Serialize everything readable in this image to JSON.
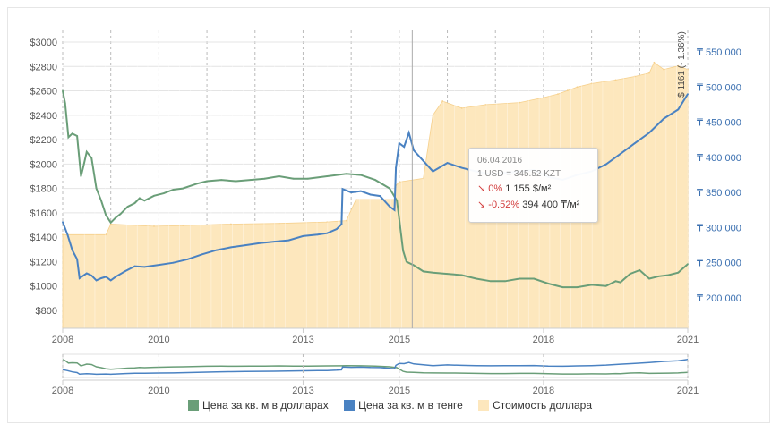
{
  "chart_data": {
    "type": "line",
    "x_ticks": [
      "2008",
      "2010",
      "2013",
      "2015",
      "2018",
      "2021"
    ],
    "xlim": [
      2008.0,
      2021.0
    ],
    "y_left_ticks": [
      "$800",
      "$1000",
      "$1200",
      "$1400",
      "$1600",
      "$1800",
      "$2000",
      "$2200",
      "$2400",
      "$2600",
      "$2800",
      "$3000"
    ],
    "y_left_range": [
      800,
      3000
    ],
    "y_right_ticks": [
      "₸ 200 000",
      "₸ 250 000",
      "₸ 300 000",
      "₸ 350 000",
      "₸ 400 000",
      "₸ 450 000",
      "₸ 500 000",
      "₸ 550 000"
    ],
    "y_right_range": [
      200000,
      550000
    ],
    "current_label": "$ 1161 (- 1.36%)",
    "colors": {
      "usd": "#6a9e78",
      "kzt": "#4a82c2",
      "rate": "#fde7bd",
      "rate_stroke": "#f6d08c"
    },
    "series": [
      {
        "name": "Цена за кв. м в долларах",
        "axis": "left",
        "x": [
          2008.0,
          2008.05,
          2008.12,
          2008.2,
          2008.3,
          2008.38,
          2008.43,
          2008.5,
          2008.6,
          2008.7,
          2008.8,
          2008.9,
          2009.0,
          2009.1,
          2009.2,
          2009.35,
          2009.5,
          2009.6,
          2009.7,
          2009.9,
          2010.1,
          2010.3,
          2010.5,
          2010.8,
          2011.0,
          2011.3,
          2011.6,
          2011.9,
          2012.2,
          2012.5,
          2012.8,
          2013.1,
          2013.5,
          2013.9,
          2014.2,
          2014.5,
          2014.8,
          2014.95,
          2015.0,
          2015.08,
          2015.15,
          2015.3,
          2015.5,
          2015.7,
          2016.0,
          2016.3,
          2016.6,
          2016.9,
          2017.2,
          2017.5,
          2017.8,
          2018.1,
          2018.4,
          2018.7,
          2019.0,
          2019.3,
          2019.5,
          2019.6,
          2019.8,
          2020.0,
          2020.2,
          2020.4,
          2020.6,
          2020.8,
          2021.0
        ],
        "y": [
          2600,
          2500,
          2220,
          2250,
          2230,
          1900,
          1980,
          2100,
          2050,
          1800,
          1700,
          1580,
          1520,
          1560,
          1590,
          1650,
          1680,
          1720,
          1700,
          1740,
          1760,
          1790,
          1800,
          1840,
          1860,
          1870,
          1860,
          1870,
          1880,
          1900,
          1880,
          1880,
          1900,
          1920,
          1910,
          1870,
          1800,
          1700,
          1550,
          1290,
          1200,
          1170,
          1120,
          1110,
          1100,
          1090,
          1060,
          1040,
          1040,
          1060,
          1060,
          1020,
          990,
          990,
          1010,
          1000,
          1040,
          1030,
          1100,
          1130,
          1060,
          1080,
          1090,
          1110,
          1180
        ]
      },
      {
        "name": "Цена за кв. м в тенге",
        "axis": "right",
        "x": [
          2008.0,
          2008.1,
          2008.2,
          2008.3,
          2008.35,
          2008.5,
          2008.6,
          2008.7,
          2008.8,
          2008.9,
          2009.0,
          2009.1,
          2009.3,
          2009.5,
          2009.7,
          2010.0,
          2010.3,
          2010.6,
          2010.9,
          2011.2,
          2011.5,
          2011.8,
          2012.1,
          2012.4,
          2012.7,
          2013.0,
          2013.3,
          2013.5,
          2013.7,
          2013.8,
          2013.82,
          2014.0,
          2014.2,
          2014.4,
          2014.6,
          2014.8,
          2014.9,
          2014.93,
          2015.0,
          2015.1,
          2015.2,
          2015.3,
          2015.5,
          2015.7,
          2016.0,
          2016.3,
          2016.6,
          2016.9,
          2017.2,
          2017.5,
          2017.8,
          2018.1,
          2018.4,
          2018.7,
          2019.0,
          2019.3,
          2019.6,
          2019.9,
          2020.2,
          2020.5,
          2020.8,
          2021.0
        ],
        "y": [
          308000,
          290000,
          268000,
          255000,
          228000,
          235000,
          232000,
          225000,
          228000,
          230000,
          225000,
          230000,
          238000,
          245000,
          244000,
          247000,
          250000,
          255000,
          262000,
          268000,
          272000,
          275000,
          278000,
          280000,
          282000,
          288000,
          290000,
          292000,
          298000,
          305000,
          355000,
          350000,
          352000,
          347000,
          345000,
          330000,
          325000,
          385000,
          420000,
          415000,
          435000,
          410000,
          395000,
          380000,
          392000,
          385000,
          380000,
          376000,
          378000,
          380000,
          382000,
          372000,
          368000,
          375000,
          380000,
          390000,
          405000,
          420000,
          435000,
          455000,
          468000,
          490000
        ]
      },
      {
        "name": "Стоимость доллара",
        "axis": "right",
        "x": [
          2008.0,
          2008.9,
          2009.0,
          2009.9,
          2010.5,
          2011.5,
          2012.5,
          2013.5,
          2013.9,
          2014.1,
          2014.9,
          2014.93,
          2015.0,
          2015.5,
          2015.7,
          2015.9,
          2016.3,
          2016.8,
          2017.5,
          2018.0,
          2018.3,
          2018.5,
          2018.7,
          2019.0,
          2019.5,
          2019.9,
          2020.2,
          2020.3,
          2020.5,
          2020.8,
          2021.0
        ],
        "y": [
          290000,
          290000,
          305000,
          302000,
          303000,
          305000,
          306000,
          308000,
          310000,
          340000,
          340000,
          360000,
          365000,
          370000,
          460000,
          480000,
          470000,
          475000,
          478000,
          485000,
          490000,
          495000,
          500000,
          505000,
          510000,
          515000,
          520000,
          535000,
          525000,
          530000,
          525000
        ]
      }
    ],
    "tooltip": {
      "date": "06.04.2016",
      "rate": "1 USD = 345.52 KZT",
      "usd_change": "0%",
      "usd_value": "1 155 $/м²",
      "kzt_change": "-0.52%",
      "kzt_value": "394 400 ₸/м²"
    },
    "legend": [
      "Цена за кв. м в долларах",
      "Цена за кв. м в тенге",
      "Стоимость доллара"
    ]
  }
}
